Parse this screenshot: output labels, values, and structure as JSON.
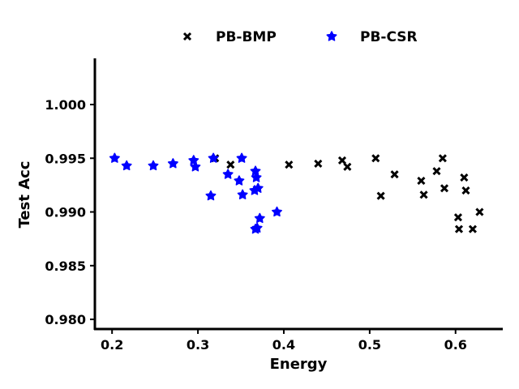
{
  "chart_data": {
    "type": "scatter",
    "title": "",
    "xlabel": "Energy",
    "ylabel": "Test Acc",
    "xlim": [
      0.18,
      0.655
    ],
    "ylim": [
      0.9791,
      1.0043
    ],
    "xticks": [
      0.2,
      0.3,
      0.4,
      0.5,
      0.6
    ],
    "xtick_labels": [
      "0.2",
      "0.3",
      "0.4",
      "0.5",
      "0.6"
    ],
    "yticks": [
      0.98,
      0.985,
      0.99,
      0.995,
      1.0
    ],
    "ytick_labels": [
      "0.980",
      "0.985",
      "0.990",
      "0.995",
      "1.000"
    ],
    "grid": false,
    "legend_position": "top-center",
    "series": [
      {
        "name": "PB-BMP",
        "marker": "x",
        "color": "#000000",
        "points": [
          [
            0.32,
            0.995
          ],
          [
            0.338,
            0.9944
          ],
          [
            0.406,
            0.9944
          ],
          [
            0.44,
            0.9945
          ],
          [
            0.468,
            0.9948
          ],
          [
            0.474,
            0.9942
          ],
          [
            0.507,
            0.995
          ],
          [
            0.513,
            0.9915
          ],
          [
            0.529,
            0.9935
          ],
          [
            0.56,
            0.9929
          ],
          [
            0.563,
            0.9916
          ],
          [
            0.578,
            0.9938
          ],
          [
            0.585,
            0.995
          ],
          [
            0.587,
            0.9922
          ],
          [
            0.603,
            0.9895
          ],
          [
            0.604,
            0.9884
          ],
          [
            0.61,
            0.9932
          ],
          [
            0.612,
            0.992
          ],
          [
            0.62,
            0.9884
          ],
          [
            0.628,
            0.99
          ]
        ]
      },
      {
        "name": "PB-CSR",
        "marker": "star",
        "color": "#0000ff",
        "points": [
          [
            0.203,
            0.995
          ],
          [
            0.217,
            0.9943
          ],
          [
            0.248,
            0.9943
          ],
          [
            0.271,
            0.9945
          ],
          [
            0.295,
            0.9948
          ],
          [
            0.297,
            0.9942
          ],
          [
            0.315,
            0.9915
          ],
          [
            0.318,
            0.995
          ],
          [
            0.335,
            0.9935
          ],
          [
            0.348,
            0.9929
          ],
          [
            0.351,
            0.995
          ],
          [
            0.352,
            0.9916
          ],
          [
            0.366,
            0.992
          ],
          [
            0.367,
            0.9938
          ],
          [
            0.367,
            0.9884
          ],
          [
            0.368,
            0.9932
          ],
          [
            0.369,
            0.9885
          ],
          [
            0.37,
            0.9922
          ],
          [
            0.372,
            0.9894
          ],
          [
            0.392,
            0.99
          ]
        ]
      }
    ]
  }
}
